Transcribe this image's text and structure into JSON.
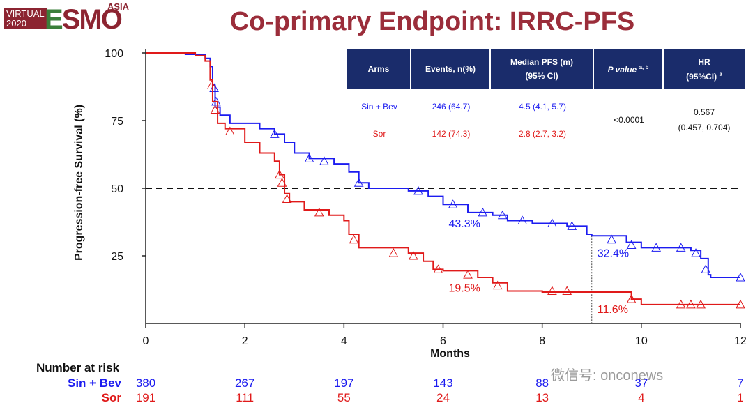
{
  "logo": {
    "virtual": "VIRTUAL",
    "year": "2020",
    "brand_e": "E",
    "brand_rest": "SMO",
    "region": "ASIA"
  },
  "title": "Co-primary Endpoint: IRRC-PFS",
  "table": {
    "headers": [
      "Arms",
      "Events, n(%)",
      "Median PFS (m)",
      "(95% CI)",
      "P value",
      "a, b",
      "HR",
      "(95%CI)",
      "a"
    ],
    "rows": [
      {
        "arm": "Sin + Bev",
        "events": "246 (64.7)",
        "median": "4.5 (4.1, 5.7)"
      },
      {
        "arm": "Sor",
        "events": "142 (74.3)",
        "median": "2.8 (2.7, 3.2)"
      }
    ],
    "p_value": "<0.0001",
    "hr": "0.567",
    "hr_ci": "(0.457, 0.704)"
  },
  "colors": {
    "blue": "#1c1cf0",
    "red": "#e01a1a",
    "header": "#1a2c6b",
    "title": "#9b2d3a"
  },
  "risk": {
    "heading": "Number at risk",
    "arms": [
      {
        "label": "Sin + Bev",
        "values": [
          "380",
          "267",
          "197",
          "143",
          "88",
          "37",
          "7"
        ]
      },
      {
        "label": "Sor",
        "values": [
          "191",
          "111",
          "55",
          "24",
          "13",
          "4",
          "1"
        ]
      }
    ]
  },
  "watermark": "微信号: onconews",
  "chart_data": {
    "type": "line",
    "title": "Co-primary Endpoint: IRRC-PFS",
    "xlabel": "Months",
    "ylabel": "Progression-free Survival (%)",
    "xlim": [
      0,
      12
    ],
    "ylim": [
      0,
      100
    ],
    "xticks": [
      0,
      2,
      4,
      6,
      8,
      10,
      12
    ],
    "yticks": [
      25,
      50,
      75,
      100
    ],
    "median_line": 50,
    "series": [
      {
        "name": "Sin + Bev",
        "color": "#1c1cf0",
        "points": [
          [
            0,
            100
          ],
          [
            0.8,
            99.5
          ],
          [
            1.2,
            98
          ],
          [
            1.3,
            95
          ],
          [
            1.35,
            88
          ],
          [
            1.4,
            80
          ],
          [
            1.5,
            77
          ],
          [
            1.7,
            74
          ],
          [
            2.3,
            72
          ],
          [
            2.6,
            70
          ],
          [
            2.8,
            67
          ],
          [
            3,
            63
          ],
          [
            3.3,
            61
          ],
          [
            3.8,
            59
          ],
          [
            4.1,
            56
          ],
          [
            4.3,
            52
          ],
          [
            4.5,
            50
          ],
          [
            5.3,
            49
          ],
          [
            5.7,
            47
          ],
          [
            6,
            44
          ],
          [
            6.5,
            41
          ],
          [
            7,
            40
          ],
          [
            7.3,
            38
          ],
          [
            7.8,
            37
          ],
          [
            8.5,
            36
          ],
          [
            8.9,
            33
          ],
          [
            9,
            32.4
          ],
          [
            9.7,
            30
          ],
          [
            10,
            28
          ],
          [
            11,
            27
          ],
          [
            11.2,
            24
          ],
          [
            11.35,
            18
          ],
          [
            11.4,
            17
          ],
          [
            12,
            17
          ]
        ],
        "censor": [
          [
            1.38,
            87
          ],
          [
            1.42,
            82
          ],
          [
            2.6,
            70
          ],
          [
            3.3,
            61
          ],
          [
            3.6,
            60
          ],
          [
            4.3,
            52
          ],
          [
            5.5,
            49
          ],
          [
            6.2,
            44
          ],
          [
            6.8,
            41
          ],
          [
            7.2,
            40
          ],
          [
            7.6,
            38
          ],
          [
            8.2,
            37
          ],
          [
            8.6,
            36
          ],
          [
            9.4,
            31
          ],
          [
            9.8,
            29
          ],
          [
            10.3,
            28
          ],
          [
            10.8,
            28
          ],
          [
            11.1,
            26
          ],
          [
            11.3,
            20
          ],
          [
            12,
            17
          ]
        ],
        "landmarks": [
          {
            "x": 6,
            "y": 43.3,
            "label": "43.3%"
          },
          {
            "x": 9,
            "y": 32.4,
            "label": "32.4%"
          }
        ]
      },
      {
        "name": "Sor",
        "color": "#e01a1a",
        "points": [
          [
            0,
            100
          ],
          [
            1,
            99
          ],
          [
            1.2,
            97
          ],
          [
            1.3,
            90
          ],
          [
            1.35,
            82
          ],
          [
            1.45,
            74
          ],
          [
            1.6,
            72
          ],
          [
            2,
            67
          ],
          [
            2.3,
            63
          ],
          [
            2.6,
            60
          ],
          [
            2.7,
            55
          ],
          [
            2.8,
            48
          ],
          [
            2.9,
            45
          ],
          [
            3.2,
            42
          ],
          [
            3.7,
            40
          ],
          [
            4,
            38
          ],
          [
            4.1,
            33
          ],
          [
            4.3,
            28
          ],
          [
            5.3,
            26
          ],
          [
            5.6,
            23
          ],
          [
            5.8,
            20
          ],
          [
            6,
            19.5
          ],
          [
            6.7,
            17
          ],
          [
            7,
            15
          ],
          [
            7.3,
            12
          ],
          [
            8,
            11.6
          ],
          [
            9,
            11.6
          ],
          [
            9.8,
            9
          ],
          [
            10,
            7
          ],
          [
            12,
            7
          ]
        ],
        "censor": [
          [
            1.33,
            88
          ],
          [
            1.4,
            79
          ],
          [
            1.7,
            71
          ],
          [
            2.7,
            55
          ],
          [
            2.75,
            52
          ],
          [
            2.85,
            46
          ],
          [
            3.5,
            41
          ],
          [
            4.2,
            31
          ],
          [
            5,
            26
          ],
          [
            5.4,
            25
          ],
          [
            5.9,
            20
          ],
          [
            6.5,
            18
          ],
          [
            7.1,
            14
          ],
          [
            8.2,
            12
          ],
          [
            8.5,
            12
          ],
          [
            9.8,
            9
          ],
          [
            10.8,
            7
          ],
          [
            11,
            7
          ],
          [
            11.2,
            7
          ],
          [
            12,
            7
          ]
        ],
        "landmarks": [
          {
            "x": 6,
            "y": 19.5,
            "label": "19.5%"
          },
          {
            "x": 9,
            "y": 11.6,
            "label": "11.6%"
          }
        ]
      }
    ]
  }
}
